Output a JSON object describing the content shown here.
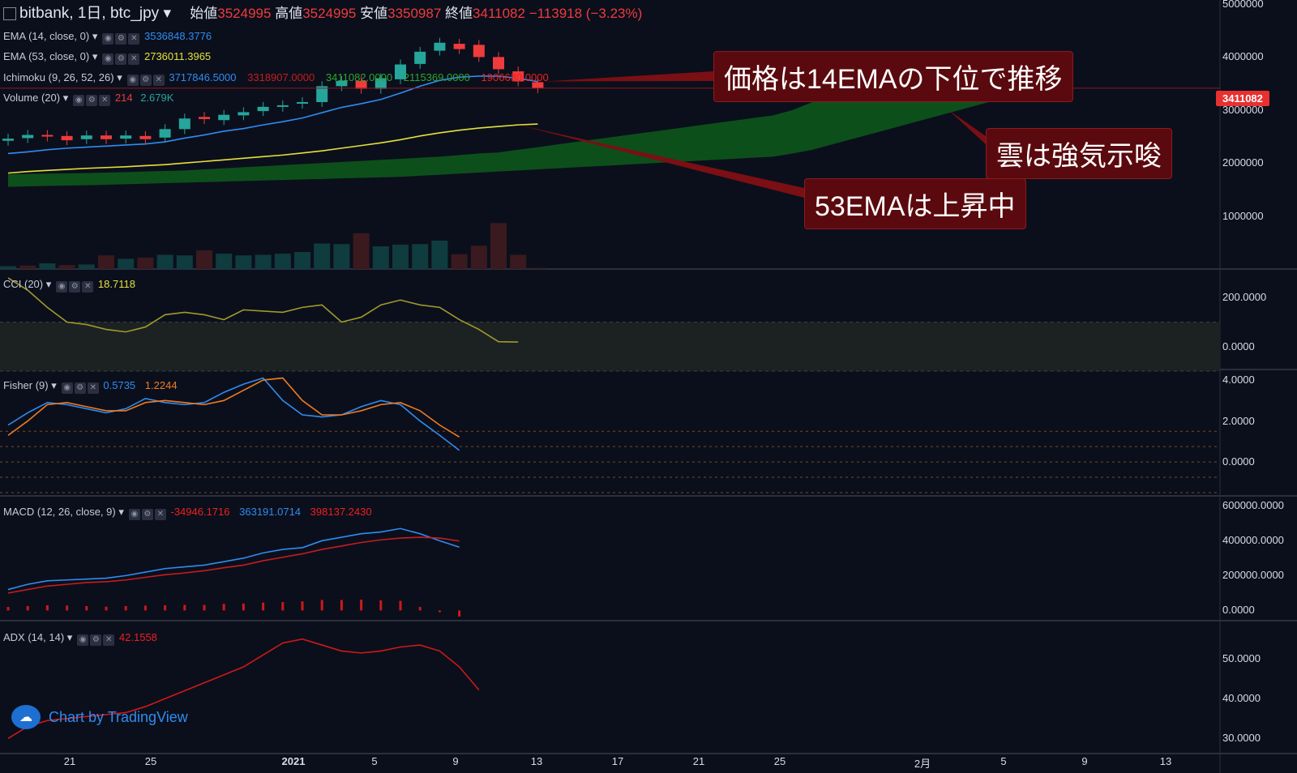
{
  "header": {
    "symbol": "bitbank, 1日, btc_jpy",
    "open_label": "始値",
    "open_value": "3524995",
    "high_label": "高値",
    "high_value": "3524995",
    "low_label": "安値",
    "low_value": "3350987",
    "close_label": "終値",
    "close_value": "3411082",
    "change": "−113918 (−3.23%)"
  },
  "indicators": {
    "ema14": {
      "name": "EMA (14, close, 0)",
      "value": "3536848.3776",
      "color": "#2f8cf0"
    },
    "ema53": {
      "name": "EMA (53, close, 0)",
      "value": "2736011.3965",
      "color": "#e6e03a"
    },
    "ichimoku": {
      "name": "Ichimoku (9, 26, 52, 26)",
      "v1": "3717846.5000",
      "v2": "3318907.0000",
      "v3": "3411082.0000",
      "v4": "2115369.0000",
      "v5": "1906630.0000"
    },
    "volume": {
      "name": "Volume (20)",
      "v1": "214",
      "v2": "2.679K"
    },
    "cci": {
      "name": "CCI (20)",
      "value": "18.7118"
    },
    "fisher": {
      "name": "Fisher (9)",
      "v1": "0.5735",
      "v2": "1.2244"
    },
    "macd": {
      "name": "MACD (12, 26, close, 9)",
      "v1": "-34946.1716",
      "v2": "363191.0714",
      "v3": "398137.2430"
    },
    "adx": {
      "name": "ADX (14, 14)",
      "value": "42.1558"
    }
  },
  "price_badge": "3411082",
  "callouts": {
    "c1": "価格は14EMAの下位で推移",
    "c2": "雲は強気示唆",
    "c3": "53EMAは上昇中"
  },
  "branding": "Chart by TradingView",
  "colors": {
    "up": "#26a69a",
    "down": "#ef3b3b",
    "cloud": "#0e5a1a",
    "bg": "#0b0f1c"
  },
  "chart_data": {
    "type": "line",
    "x_labels": [
      "21",
      "25",
      "2021",
      "5",
      "9",
      "13",
      "17",
      "21",
      "25",
      "2月",
      "5",
      "9",
      "13"
    ],
    "price_axis": {
      "ylim": [
        0,
        5000000
      ],
      "ticks": [
        "5000000",
        "4000000",
        "3000000",
        "2000000",
        "1000000"
      ]
    },
    "candles": [
      {
        "o": 2420000,
        "c": 2460000
      },
      {
        "o": 2470000,
        "c": 2530000
      },
      {
        "o": 2530000,
        "c": 2500000
      },
      {
        "o": 2510000,
        "c": 2430000
      },
      {
        "o": 2450000,
        "c": 2520000
      },
      {
        "o": 2520000,
        "c": 2450000
      },
      {
        "o": 2460000,
        "c": 2520000
      },
      {
        "o": 2510000,
        "c": 2450000
      },
      {
        "o": 2480000,
        "c": 2640000
      },
      {
        "o": 2640000,
        "c": 2840000
      },
      {
        "o": 2870000,
        "c": 2830000
      },
      {
        "o": 2810000,
        "c": 2910000
      },
      {
        "o": 2900000,
        "c": 2960000
      },
      {
        "o": 2980000,
        "c": 3060000
      },
      {
        "o": 3060000,
        "c": 3090000
      },
      {
        "o": 3120000,
        "c": 3150000
      },
      {
        "o": 3150000,
        "c": 3450000
      },
      {
        "o": 3450000,
        "c": 3550000
      },
      {
        "o": 3550000,
        "c": 3400000
      },
      {
        "o": 3400000,
        "c": 3600000
      },
      {
        "o": 3580000,
        "c": 3860000
      },
      {
        "o": 3870000,
        "c": 4100000
      },
      {
        "o": 4120000,
        "c": 4270000
      },
      {
        "o": 4250000,
        "c": 4150000
      },
      {
        "o": 4230000,
        "c": 4000000
      },
      {
        "o": 4000000,
        "c": 3770000
      },
      {
        "o": 3730000,
        "c": 3540000
      },
      {
        "o": 3525000,
        "c": 3411000
      }
    ],
    "ema14": [
      2180000,
      2210000,
      2250000,
      2280000,
      2300000,
      2320000,
      2340000,
      2360000,
      2400000,
      2470000,
      2530000,
      2600000,
      2650000,
      2720000,
      2780000,
      2850000,
      2950000,
      3050000,
      3120000,
      3200000,
      3320000,
      3450000,
      3560000,
      3620000,
      3640000,
      3640000,
      3600000,
      3537000
    ],
    "ema53": [
      1810000,
      1840000,
      1860000,
      1880000,
      1900000,
      1915000,
      1930000,
      1950000,
      1970000,
      2000000,
      2030000,
      2060000,
      2090000,
      2120000,
      2150000,
      2190000,
      2230000,
      2280000,
      2330000,
      2380000,
      2440000,
      2510000,
      2570000,
      2620000,
      2660000,
      2690000,
      2720000,
      2736000
    ],
    "volume": [
      0.05,
      0.06,
      0.1,
      0.07,
      0.08,
      0.24,
      0.18,
      0.2,
      0.25,
      0.24,
      0.33,
      0.27,
      0.24,
      0.25,
      0.27,
      0.3,
      0.45,
      0.44,
      0.63,
      0.4,
      0.43,
      0.44,
      0.5,
      0.26,
      0.41,
      0.81,
      0.25,
      0.02
    ],
    "volume_up": [
      true,
      false,
      true,
      false,
      true,
      false,
      true,
      false,
      true,
      true,
      false,
      true,
      true,
      true,
      true,
      true,
      true,
      true,
      false,
      true,
      true,
      true,
      true,
      false,
      false,
      false,
      false,
      false
    ],
    "cci": {
      "ylim": [
        -80,
        290
      ],
      "ticks": [
        "200.0000",
        "0.0000"
      ],
      "values": [
        280,
        230,
        160,
        100,
        90,
        70,
        60,
        80,
        130,
        140,
        130,
        110,
        150,
        145,
        140,
        160,
        170,
        100,
        120,
        170,
        190,
        170,
        160,
        110,
        70,
        20,
        18.7
      ]
    },
    "fisher": {
      "ylim": [
        -1.5,
        4.2
      ],
      "ticks": [
        "4.0000",
        "2.0000",
        "0.0000"
      ],
      "series": [
        {
          "values": [
            1.8,
            2.4,
            2.9,
            2.8,
            2.6,
            2.4,
            2.6,
            3.1,
            2.9,
            2.8,
            2.9,
            3.4,
            3.8,
            4.1,
            3.0,
            2.3,
            2.2,
            2.3,
            2.7,
            3.0,
            2.8,
            2.0,
            1.3,
            0.57
          ],
          "color": "#2f8cf0"
        },
        {
          "values": [
            1.3,
            2.0,
            2.8,
            2.9,
            2.7,
            2.5,
            2.5,
            2.9,
            3.0,
            2.9,
            2.8,
            3.0,
            3.5,
            4.0,
            4.1,
            3.0,
            2.3,
            2.3,
            2.5,
            2.8,
            2.9,
            2.5,
            1.8,
            1.22
          ],
          "color": "#f07a20"
        }
      ]
    },
    "macd": {
      "ylim": [
        -40000,
        620000
      ],
      "ticks": [
        "600000.0000",
        "400000.0000",
        "200000.0000",
        "0.0000"
      ],
      "series": [
        {
          "values": [
            120000,
            150000,
            170000,
            175000,
            180000,
            185000,
            200000,
            220000,
            240000,
            250000,
            260000,
            280000,
            300000,
            330000,
            350000,
            360000,
            400000,
            420000,
            440000,
            450000,
            470000,
            440000,
            400000,
            363000
          ],
          "color": "#2f8cf0"
        },
        {
          "values": [
            100000,
            120000,
            140000,
            150000,
            160000,
            165000,
            175000,
            190000,
            205000,
            215000,
            228000,
            245000,
            260000,
            285000,
            305000,
            325000,
            350000,
            370000,
            390000,
            405000,
            415000,
            420000,
            415000,
            398000
          ],
          "color": "#c81c1c"
        }
      ],
      "histogram": [
        20000,
        25000,
        30000,
        28000,
        25000,
        22000,
        25000,
        28000,
        30000,
        32000,
        32000,
        38000,
        40000,
        45000,
        48000,
        52000,
        60000,
        60000,
        62000,
        58000,
        55000,
        20000,
        -10000,
        -35000
      ]
    },
    "adx": {
      "ylim": [
        27,
        58
      ],
      "ticks": [
        "50.0000",
        "40.0000",
        "30.0000"
      ],
      "values": [
        30,
        33,
        34.5,
        35,
        35.5,
        36,
        36.5,
        38,
        40,
        42,
        44,
        46,
        48,
        51,
        54,
        55,
        53.5,
        52,
        51.5,
        52,
        53,
        53.5,
        52,
        48,
        42.2
      ]
    }
  }
}
